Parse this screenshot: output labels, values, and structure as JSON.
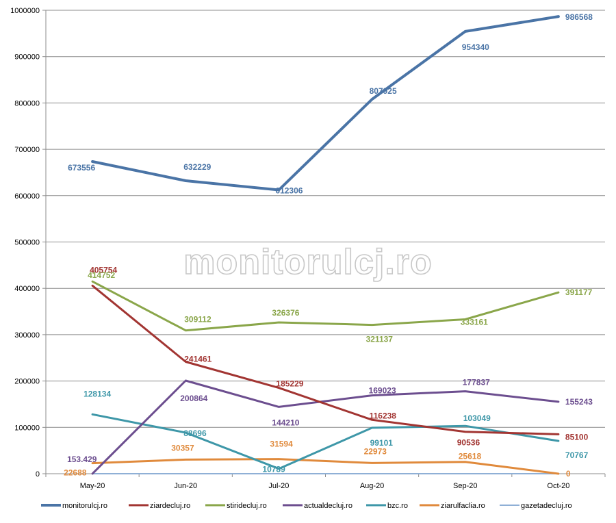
{
  "watermark": "monitorulcj.ro",
  "chart_data": {
    "type": "line",
    "title": "",
    "xlabel": "",
    "ylabel": "",
    "categories": [
      "May-20",
      "Jun-20",
      "Jul-20",
      "Aug-20",
      "Sep-20",
      "Oct-20"
    ],
    "ylim": [
      0,
      1000000
    ],
    "yticks": [
      "0",
      "100000",
      "200000",
      "300000",
      "400000",
      "500000",
      "600000",
      "700000",
      "800000",
      "900000",
      "1000000"
    ],
    "grid": true,
    "legend_position": "bottom",
    "series": [
      {
        "name": "monitorulcj.ro",
        "color": "#4a74a6",
        "width": 4,
        "values": [
          673556,
          632229,
          612306,
          807925,
          954340,
          986568
        ],
        "labels": [
          "673556",
          "632229",
          "612306",
          "807925",
          "954340",
          "986568"
        ]
      },
      {
        "name": "ziardecluj.ro",
        "color": "#a23532",
        "width": 3,
        "values": [
          405754,
          241461,
          185229,
          116238,
          90536,
          85100
        ],
        "labels": [
          "405754",
          "241461",
          "185229",
          "116238",
          "90536",
          "85100"
        ]
      },
      {
        "name": "stiridecluj.ro",
        "color": "#8aa64a",
        "width": 3,
        "values": [
          414752,
          309112,
          326376,
          321137,
          333161,
          391177
        ],
        "labels": [
          "414752",
          "309112",
          "326376",
          "321137",
          "333161",
          "391177"
        ]
      },
      {
        "name": "actualdecluj.ro",
        "color": "#6c4e8f",
        "width": 3,
        "values": [
          153.429,
          200864,
          144210,
          169023,
          177837,
          155243
        ],
        "labels": [
          "153.429",
          "200864",
          "144210",
          "169023",
          "177837",
          "155243"
        ]
      },
      {
        "name": "bzc.ro",
        "color": "#3e97a8",
        "width": 3,
        "values": [
          128134,
          88696,
          10789,
          99101,
          103049,
          70767
        ],
        "labels": [
          "128134",
          "88696",
          "10789",
          "99101",
          "103049",
          "70767"
        ]
      },
      {
        "name": "ziarulfaclia.ro",
        "color": "#e08a3c",
        "width": 3,
        "values": [
          22688,
          30357,
          31594,
          22973,
          25618,
          0
        ],
        "labels": [
          "22688",
          "30357",
          "31594",
          "22973",
          "25618",
          "0"
        ]
      },
      {
        "name": "gazetadecluj.ro",
        "color": "#8fb0d6",
        "width": 2,
        "values": [
          0,
          0,
          0,
          0,
          0,
          0
        ],
        "labels": []
      }
    ]
  }
}
